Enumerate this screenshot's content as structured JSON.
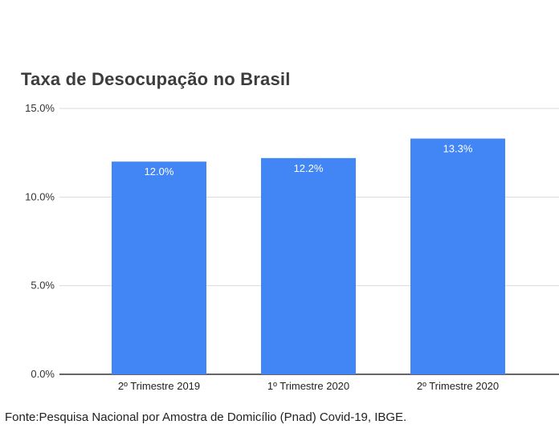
{
  "chart_data": {
    "type": "bar",
    "title": "Taxa de Desocupação no Brasil",
    "categories": [
      "2º Trimestre 2019",
      "1º Trimestre 2020",
      "2º Trimestre 2020"
    ],
    "values": [
      12.0,
      12.2,
      13.3
    ],
    "data_labels": [
      "12.0%",
      "12.2%",
      "13.3%"
    ],
    "ylim": [
      0,
      15
    ],
    "yticks": [
      0,
      5,
      10,
      15
    ],
    "ytick_labels": [
      "0.0%",
      "5.0%",
      "10.0%",
      "15.0%"
    ],
    "xlabel": "",
    "ylabel": "",
    "grid": true,
    "bar_color": "#4285f4",
    "gridline_color": "#d9d9d9"
  },
  "footer": {
    "source": "Fonte:Pesquisa Nacional por Amostra de Domicílio (Pnad) Covid-19, IBGE."
  }
}
